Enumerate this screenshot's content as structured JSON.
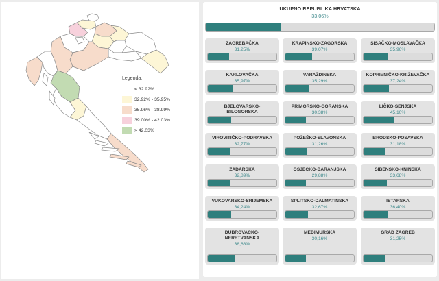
{
  "legend": {
    "title": "Legenda:",
    "items": [
      {
        "label": "< 32.92%",
        "color": "#ffffff"
      },
      {
        "label": "32.92% - 35.95%",
        "color": "#fdf6d6"
      },
      {
        "label": "35.96% - 38.99%",
        "color": "#f7dccb"
      },
      {
        "label": "39.00% - 42.03%",
        "color": "#f7d1dc"
      },
      {
        "label": "> 42.03%",
        "color": "#c2dbb2"
      }
    ]
  },
  "total": {
    "name": "UKUPNO REPUBLIKA HRVATSKA",
    "pct": "33,06%",
    "value": 33.06
  },
  "counties": [
    {
      "name": "ZAGREBAČKA",
      "pct": "31,25%",
      "value": 31.25
    },
    {
      "name": "KRAPINSKO-ZAGORSKA",
      "pct": "39,07%",
      "value": 39.07
    },
    {
      "name": "SISAČKO-MOSLAVAČKA",
      "pct": "35,96%",
      "value": 35.96
    },
    {
      "name": "KARLOVAČKA",
      "pct": "35,97%",
      "value": 35.97
    },
    {
      "name": "VARAŽDINSKA",
      "pct": "35,29%",
      "value": 35.29
    },
    {
      "name": "KOPRIVNIČKO-KRIŽEVAČKA",
      "pct": "37,24%",
      "value": 37.24
    },
    {
      "name": "BJELOVARSKO-BILOGORSKA",
      "pct": "33,87%",
      "value": 33.87
    },
    {
      "name": "PRIMORSKO-GORANSKA",
      "pct": "30,38%",
      "value": 30.38
    },
    {
      "name": "LIČKO-SENJSKA",
      "pct": "45,10%",
      "value": 45.1
    },
    {
      "name": "VIROVITIČKO-PODRAVSKA",
      "pct": "32,77%",
      "value": 32.77
    },
    {
      "name": "POŽEŠKO-SLAVONSKA",
      "pct": "31,26%",
      "value": 31.26
    },
    {
      "name": "BRODSKO-POSAVSKA",
      "pct": "31,18%",
      "value": 31.18
    },
    {
      "name": "ZADARSKA",
      "pct": "32,89%",
      "value": 32.89
    },
    {
      "name": "OSJEČKO-BARANJSKA",
      "pct": "29,88%",
      "value": 29.88
    },
    {
      "name": "ŠIBENSKO-KNINSKA",
      "pct": "33,68%",
      "value": 33.68
    },
    {
      "name": "VUKOVARSKO-SRIJEMSKA",
      "pct": "34,24%",
      "value": 34.24
    },
    {
      "name": "SPLITSKO-DALMATINSKA",
      "pct": "32,67%",
      "value": 32.67
    },
    {
      "name": "ISTARSKA",
      "pct": "36,40%",
      "value": 36.4
    },
    {
      "name": "DUBROVAČKO-NERETVANSKA",
      "pct": "38,68%",
      "value": 38.68
    },
    {
      "name": "MEĐIMURSKA",
      "pct": "30,16%",
      "value": 30.16
    },
    {
      "name": "GRAD ZAGREB",
      "pct": "31,25%",
      "value": 31.25
    }
  ],
  "colors": {
    "fill": "#2f7f7d",
    "pct_text": "#3f8a8c"
  }
}
